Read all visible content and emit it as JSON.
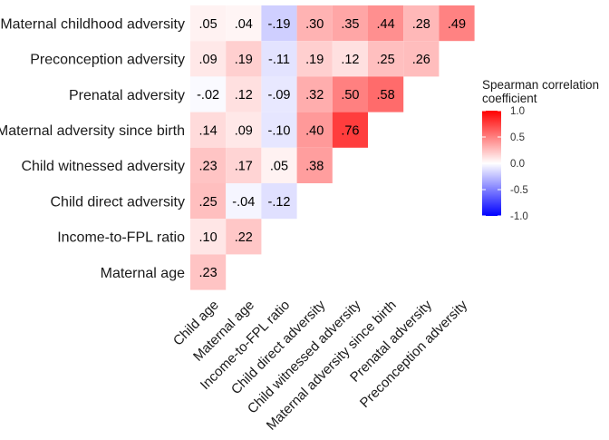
{
  "chart_data": {
    "type": "heatmap",
    "rows": [
      "Maternal childhood adversity",
      "Preconception adversity",
      "Prenatal adversity",
      "Maternal adversity since birth",
      "Child witnessed adversity",
      "Child direct adversity",
      "Income-to-FPL ratio",
      "Maternal age"
    ],
    "columns": [
      "Child age",
      "Maternal age",
      "Income-to-FPL ratio",
      "Child direct adversity",
      "Child witnessed adversity",
      "Maternal adversity since birth",
      "Prenatal adversity",
      "Preconception adversity"
    ],
    "values": [
      [
        0.05,
        0.04,
        -0.19,
        0.3,
        0.35,
        0.44,
        0.28,
        0.49
      ],
      [
        0.09,
        0.19,
        -0.11,
        0.19,
        0.12,
        0.25,
        0.26,
        null
      ],
      [
        -0.02,
        0.12,
        -0.09,
        0.32,
        0.5,
        0.58,
        null,
        null
      ],
      [
        0.14,
        0.09,
        -0.1,
        0.4,
        0.76,
        null,
        null,
        null
      ],
      [
        0.23,
        0.17,
        0.05,
        0.38,
        null,
        null,
        null,
        null
      ],
      [
        0.25,
        -0.04,
        -0.12,
        null,
        null,
        null,
        null,
        null
      ],
      [
        0.1,
        0.22,
        null,
        null,
        null,
        null,
        null,
        null
      ],
      [
        0.23,
        null,
        null,
        null,
        null,
        null,
        null,
        null
      ]
    ],
    "cell_labels": [
      [
        ".05",
        ".04",
        "-.19",
        ".30",
        ".35",
        ".44",
        ".28",
        ".49"
      ],
      [
        ".09",
        ".19",
        "-.11",
        ".19",
        ".12",
        ".25",
        ".26",
        null
      ],
      [
        "-.02",
        ".12",
        "-.09",
        ".32",
        ".50",
        ".58",
        null,
        null
      ],
      [
        ".14",
        ".09",
        "-.10",
        ".40",
        ".76",
        null,
        null,
        null
      ],
      [
        ".23",
        ".17",
        ".05",
        ".38",
        null,
        null,
        null,
        null
      ],
      [
        ".25",
        "-.04",
        "-.12",
        null,
        null,
        null,
        null,
        null
      ],
      [
        ".10",
        ".22",
        null,
        null,
        null,
        null,
        null,
        null
      ],
      [
        ".23",
        null,
        null,
        null,
        null,
        null,
        null,
        null
      ]
    ],
    "legend": {
      "title_lines": [
        "Spearman correlation",
        "coefficient"
      ],
      "ticks": [
        1.0,
        0.5,
        0.0,
        -0.5,
        -1.0
      ],
      "tick_labels": [
        "1.0",
        "0.5",
        "0.0",
        "-0.5",
        "-1.0"
      ],
      "range": [
        -1,
        1
      ],
      "placement": "right",
      "colors": {
        "high": "#ff0000",
        "mid": "#ffffff",
        "low": "#0000ff"
      }
    },
    "colors": {
      "text": "#000000",
      "axis_text": "#1a1a1a"
    },
    "grid": false
  }
}
